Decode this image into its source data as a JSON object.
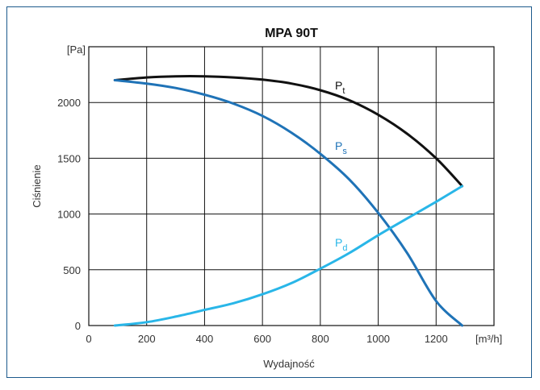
{
  "chart_data": {
    "type": "line",
    "title": "MPA 90T",
    "xlabel": "Wydajność",
    "ylabel": "Ciśnienie",
    "x_unit": "[m³/h]",
    "y_unit": "[Pa]",
    "xlim": [
      0,
      1400
    ],
    "ylim": [
      0,
      2500
    ],
    "x_ticks": [
      "0",
      "200",
      "400",
      "600",
      "800",
      "1000",
      "1200"
    ],
    "y_ticks": [
      "0",
      "500",
      "1000",
      "1500",
      "2000"
    ],
    "grid": true,
    "series": [
      {
        "name": "Pt",
        "label_main": "P",
        "label_sub": "t",
        "color": "#111111",
        "x": [
          90,
          200,
          300,
          400,
          500,
          600,
          700,
          800,
          900,
          1000,
          1100,
          1200,
          1290
        ],
        "y": [
          2200,
          2225,
          2235,
          2235,
          2225,
          2205,
          2170,
          2110,
          2020,
          1890,
          1720,
          1500,
          1250
        ]
      },
      {
        "name": "Ps",
        "label_main": "P",
        "label_sub": "s",
        "color": "#1f73b7",
        "x": [
          90,
          200,
          300,
          400,
          500,
          600,
          700,
          800,
          900,
          1000,
          1100,
          1200,
          1290
        ],
        "y": [
          2200,
          2170,
          2130,
          2070,
          1990,
          1880,
          1730,
          1540,
          1310,
          1010,
          650,
          220,
          0
        ]
      },
      {
        "name": "Pd",
        "label_main": "P",
        "label_sub": "d",
        "color": "#29b6e8",
        "x": [
          90,
          200,
          300,
          400,
          500,
          600,
          700,
          800,
          900,
          1000,
          1100,
          1200,
          1290
        ],
        "y": [
          0,
          30,
          80,
          140,
          200,
          280,
          380,
          510,
          650,
          810,
          960,
          1110,
          1250
        ]
      }
    ]
  }
}
